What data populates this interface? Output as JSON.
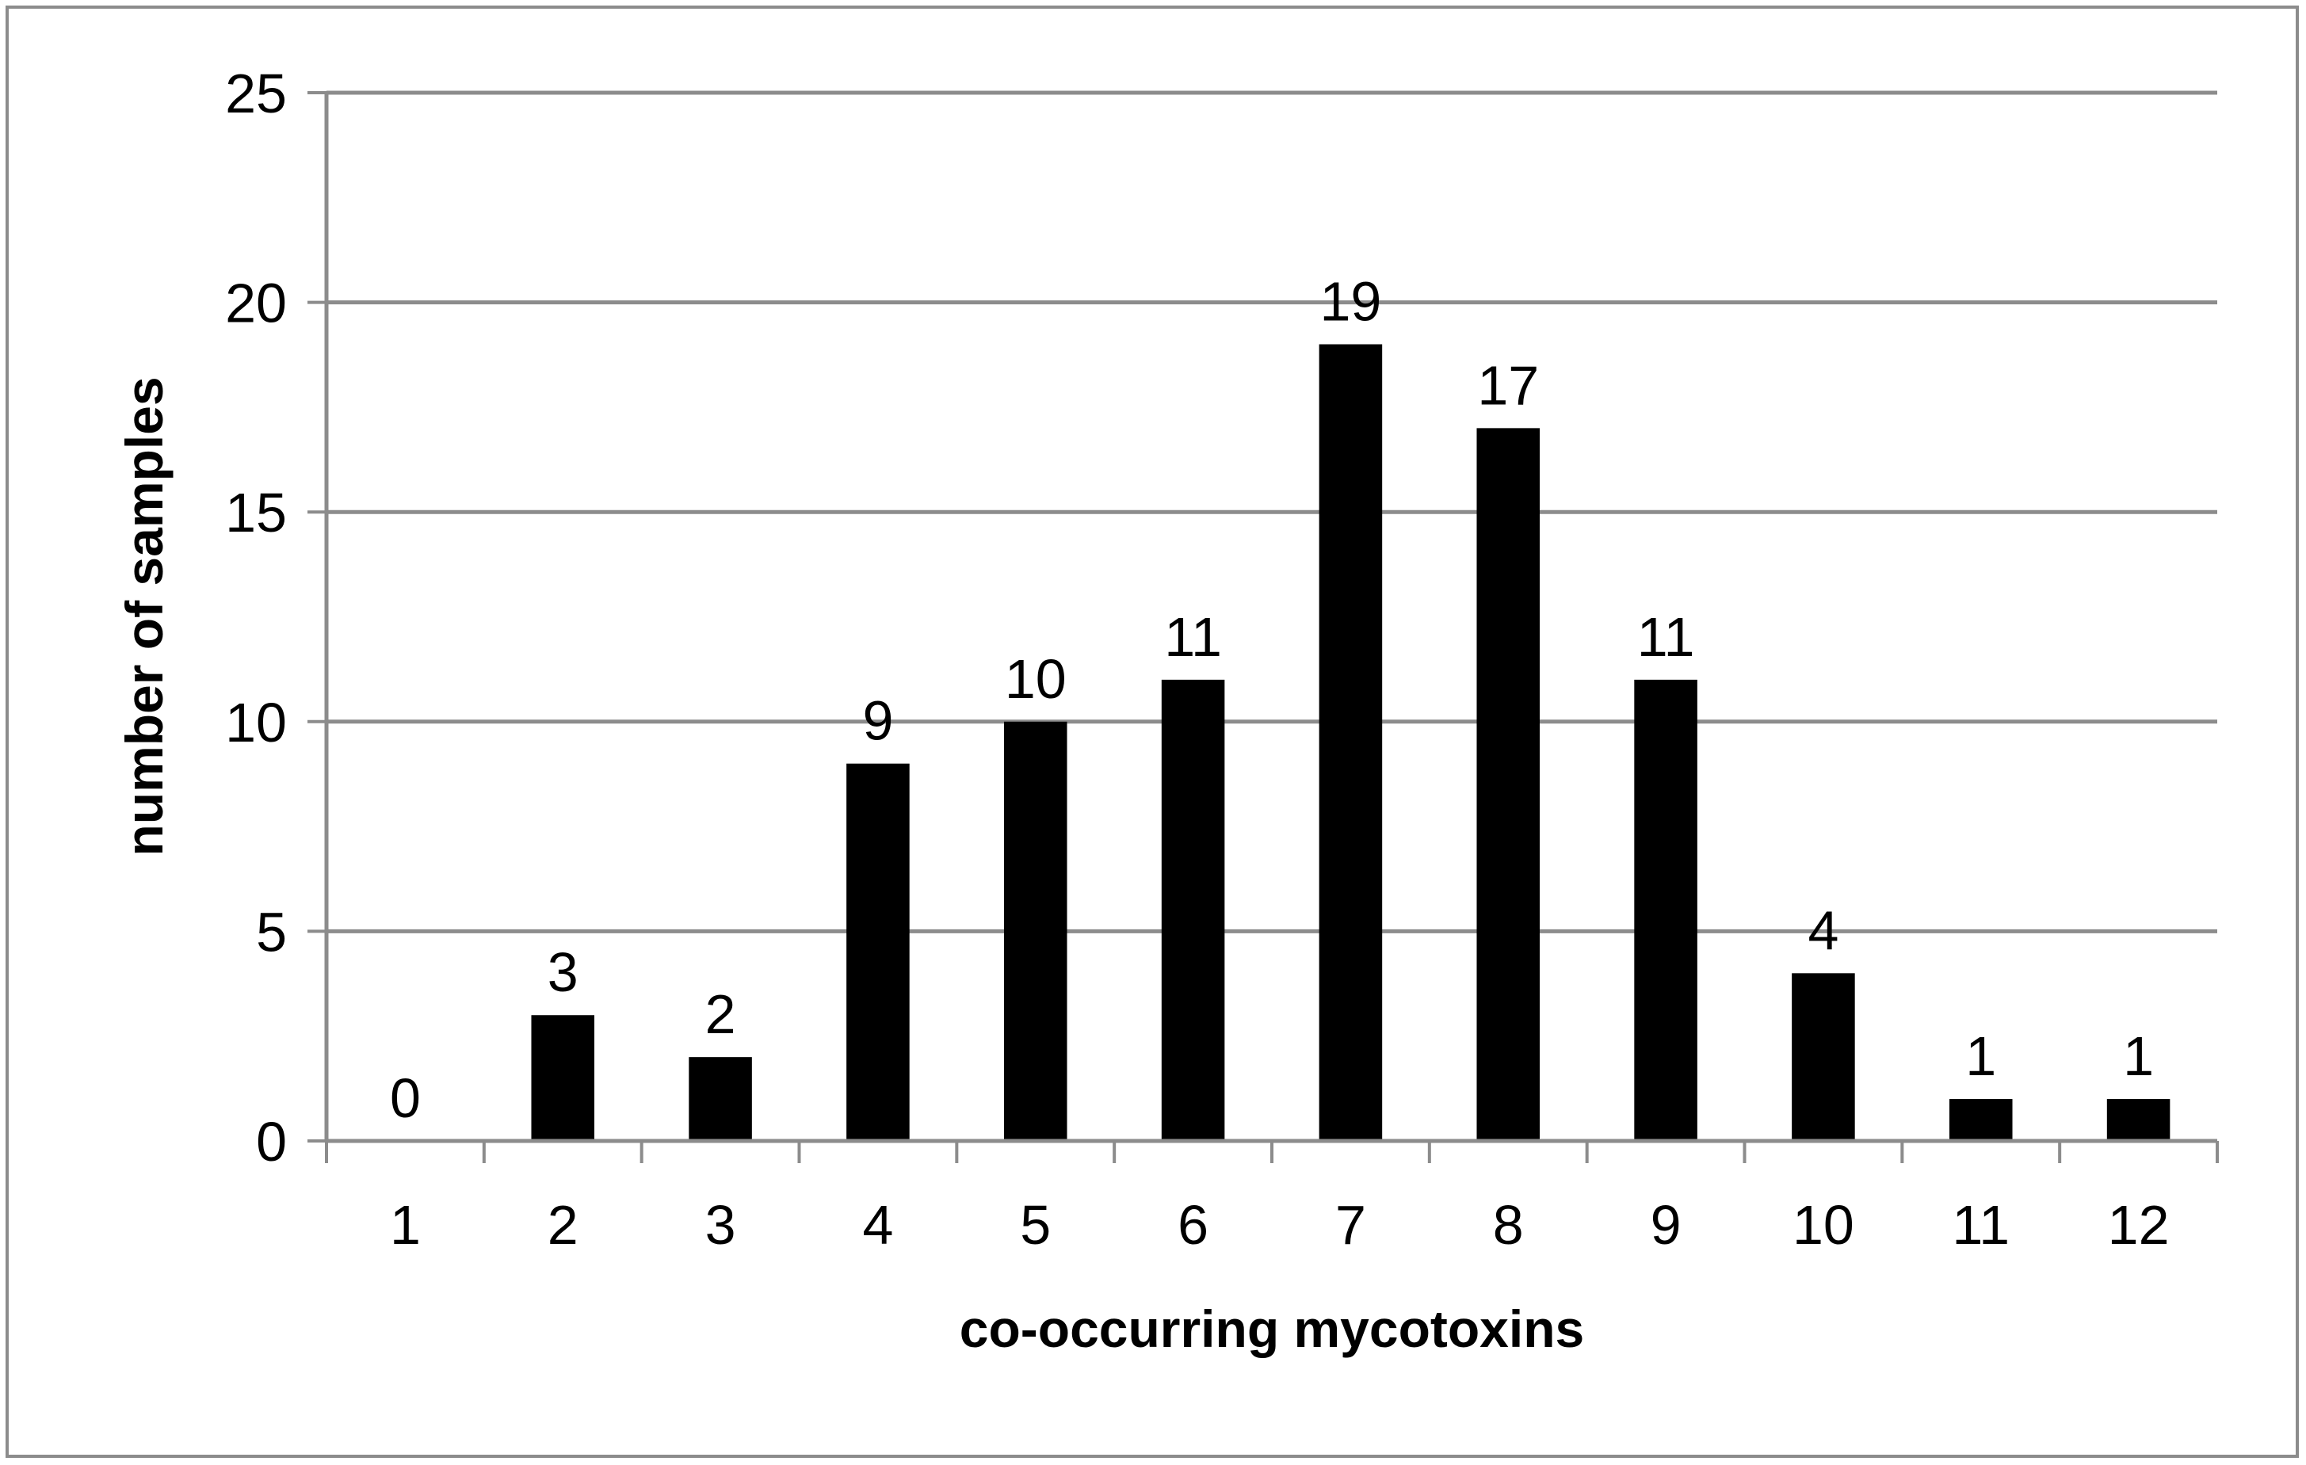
{
  "chart_data": {
    "type": "bar",
    "categories": [
      "1",
      "2",
      "3",
      "4",
      "5",
      "6",
      "7",
      "8",
      "9",
      "10",
      "11",
      "12"
    ],
    "values": [
      0,
      3,
      2,
      9,
      10,
      11,
      19,
      17,
      11,
      4,
      1,
      1
    ],
    "data_labels": [
      "0",
      "3",
      "2",
      "9",
      "10",
      "11",
      "19",
      "17",
      "11",
      "4",
      "1",
      "1"
    ],
    "xlabel": "co-occurring mycotoxins",
    "ylabel": "number of samples",
    "ylim": [
      0,
      25
    ],
    "yticks": [
      "0",
      "5",
      "10",
      "15",
      "20",
      "25"
    ],
    "grid": true,
    "legend": "none",
    "colors": {
      "bar": "#000000",
      "grid": "#8c8c8c",
      "axis": "#8c8c8c",
      "frame": "#8c8c8c"
    }
  }
}
